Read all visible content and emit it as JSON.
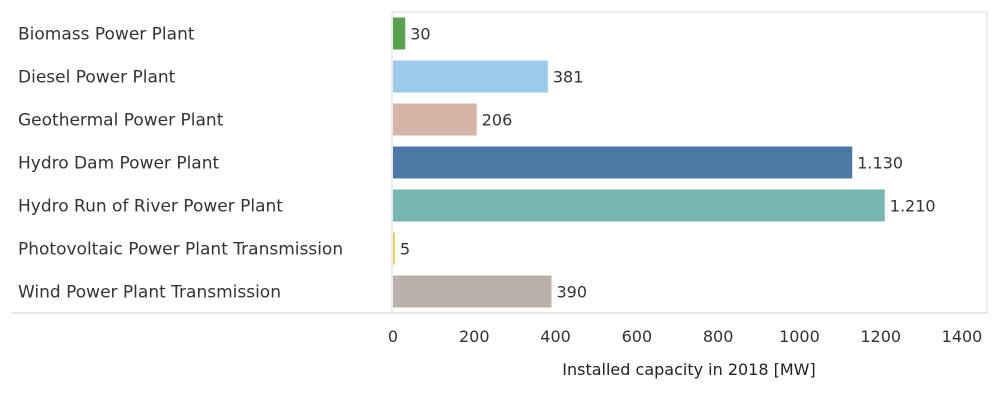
{
  "chart_data": {
    "type": "bar",
    "orientation": "horizontal",
    "categories": [
      "Biomass Power Plant",
      "Diesel Power Plant",
      "Geothermal Power Plant",
      "Hydro Dam Power Plant",
      "Hydro Run of River Power Plant",
      "Photovoltaic Power Plant Transmission",
      "Wind Power Plant Transmission"
    ],
    "values": [
      30,
      381,
      206,
      1130,
      1210,
      5,
      390
    ],
    "value_labels": [
      "30",
      "381",
      "206",
      "1.130",
      "1.210",
      "5",
      "390"
    ],
    "colors": [
      "#59a14f",
      "#9dc9ea",
      "#d6b4a6",
      "#4e79a7",
      "#76b7b2",
      "#f1ce63",
      "#bab0ac"
    ],
    "xlabel": "Installed capacity in 2018 [MW]",
    "xlim": [
      0,
      1400
    ],
    "xticks": [
      0,
      200,
      400,
      600,
      800,
      1000,
      1200,
      1400
    ],
    "xtick_labels": [
      "0",
      "200",
      "400",
      "600",
      "800",
      "1000",
      "1200",
      "1400"
    ],
    "grid": false
  }
}
